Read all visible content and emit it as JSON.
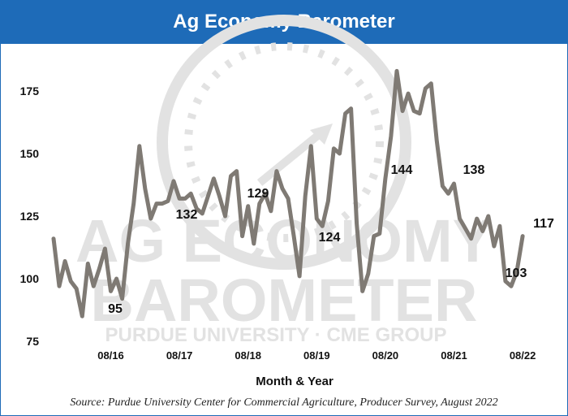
{
  "header": {
    "title": "Ag Economy Barometer"
  },
  "watermark": {
    "line1": "AG ECONOMY",
    "line2": "BAROMETER",
    "line3": "PURDUE UNIVERSITY · CME GROUP"
  },
  "source": "Source: Purdue University Center for Commercial Agriculture, Producer Survey, August 2022",
  "colors": {
    "header_bg": "#1e6bb8",
    "line": "#7f7a74",
    "watermark": "#e2e2e2"
  },
  "chart_data": {
    "type": "line",
    "title": "Ag Economy Barometer",
    "xlabel": "Month & Year",
    "ylabel": "",
    "ylim": [
      75,
      185
    ],
    "yticks": [
      75,
      100,
      125,
      150,
      175
    ],
    "xticks": [
      "08/16",
      "08/17",
      "08/18",
      "08/19",
      "08/20",
      "08/21",
      "08/22"
    ],
    "x_start": "2015-10",
    "series": [
      {
        "values": [
          116,
          97,
          107,
          99,
          96,
          85,
          106,
          97,
          104,
          112,
          95,
          100,
          92,
          114,
          130,
          153,
          136,
          124,
          130,
          130,
          131,
          139,
          132,
          132,
          134,
          128,
          126,
          133,
          140,
          133,
          125,
          141,
          143,
          117,
          129,
          114,
          130,
          134,
          127,
          143,
          136,
          132,
          117,
          101,
          133,
          153,
          124,
          121,
          131,
          152,
          150,
          166,
          168,
          122,
          95,
          102,
          117,
          118,
          140,
          157,
          183,
          167,
          174,
          167,
          166,
          176,
          178,
          155,
          137,
          134,
          138,
          124,
          120,
          116,
          124,
          119,
          125,
          113,
          121,
          99,
          97,
          103,
          117
        ]
      }
    ],
    "annotations": [
      {
        "text": "95",
        "value": 95
      },
      {
        "text": "132",
        "value": 132
      },
      {
        "text": "129",
        "value": 129
      },
      {
        "text": "124",
        "value": 124
      },
      {
        "text": "144",
        "value": 144
      },
      {
        "text": "138",
        "value": 138
      },
      {
        "text": "103",
        "value": 103
      },
      {
        "text": "117",
        "value": 117
      }
    ],
    "grid": false
  }
}
